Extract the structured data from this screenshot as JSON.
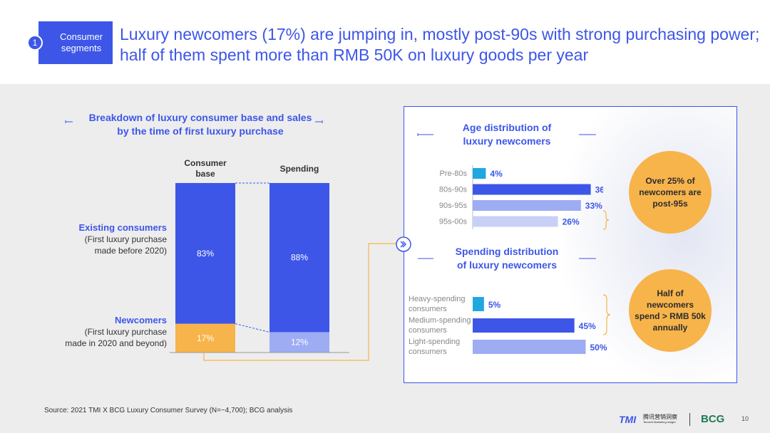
{
  "header": {
    "segment_number": "1",
    "segment_label": "Consumer segments",
    "headline": "Luxury newcomers (17%) are jumping in, mostly post-90s with strong purchasing power; half of them spent more than RMB 50K on luxury goods per year"
  },
  "left_chart": {
    "title_line1": "Breakdown of luxury consumer base and sales",
    "title_line2": "by the time of first luxury purchase",
    "rows": {
      "existing_title": "Existing consumers",
      "existing_desc1": "(First luxury purchase",
      "existing_desc2": "made before 2020)",
      "newcomers_title": "Newcomers",
      "newcomers_desc1": "(First luxury purchase",
      "newcomers_desc2": "made in 2020 and beyond)"
    }
  },
  "right_panel": {
    "age_title_line1": "Age distribution of",
    "age_title_line2": "luxury newcomers",
    "spend_title_line1": "Spending distribution",
    "spend_title_line2": "of luxury newcomers",
    "circle_age": "Over 25% of newcomers are post-95s",
    "circle_spend": "Half of newcomers spend > RMB 50k annually"
  },
  "chart_data": [
    {
      "type": "bar",
      "stacked": true,
      "categories": [
        "Consumer base",
        "Spending"
      ],
      "series": [
        {
          "name": "Existing consumers",
          "values": [
            83,
            88
          ],
          "labels": [
            "83%",
            "88%"
          ]
        },
        {
          "name": "Newcomers",
          "values": [
            17,
            12
          ],
          "labels": [
            "17%",
            "12%"
          ]
        }
      ],
      "ylim": [
        0,
        100
      ]
    },
    {
      "type": "bar",
      "orientation": "horizontal",
      "title": "Age distribution of luxury newcomers",
      "categories": [
        "Pre-80s",
        "80s-90s",
        "90s-95s",
        "95s-00s"
      ],
      "values": [
        4,
        36,
        33,
        26
      ],
      "labels": [
        "4%",
        "36%",
        "33%",
        "26%"
      ],
      "xlim": [
        0,
        50
      ]
    },
    {
      "type": "bar",
      "orientation": "horizontal",
      "title": "Spending distribution of luxury newcomers",
      "categories": [
        "Heavy-spending consumers",
        "Medium-spending consumers",
        "Light-spending consumers"
      ],
      "values": [
        5,
        45,
        50
      ],
      "labels": [
        "5%",
        "45%",
        "50%"
      ],
      "xlim": [
        0,
        60
      ]
    }
  ],
  "colors": {
    "primary": "#3d56e8",
    "newcomer": "#f7b44b",
    "light_blue": "#9eacf4",
    "lighter_blue": "#c8d0f8",
    "cyan": "#1fa8e0"
  },
  "footer": {
    "source": "Source: 2021 TMI X BCG Luxury Consumer Survey (N=~4,700); BCG analysis",
    "logo_tmi": "TMI",
    "logo_tmi_cn": "腾讯营销洞察",
    "logo_tmi_en": "Tencent Marketing Insight",
    "logo_bcg": "BCG",
    "page_number": "10"
  }
}
